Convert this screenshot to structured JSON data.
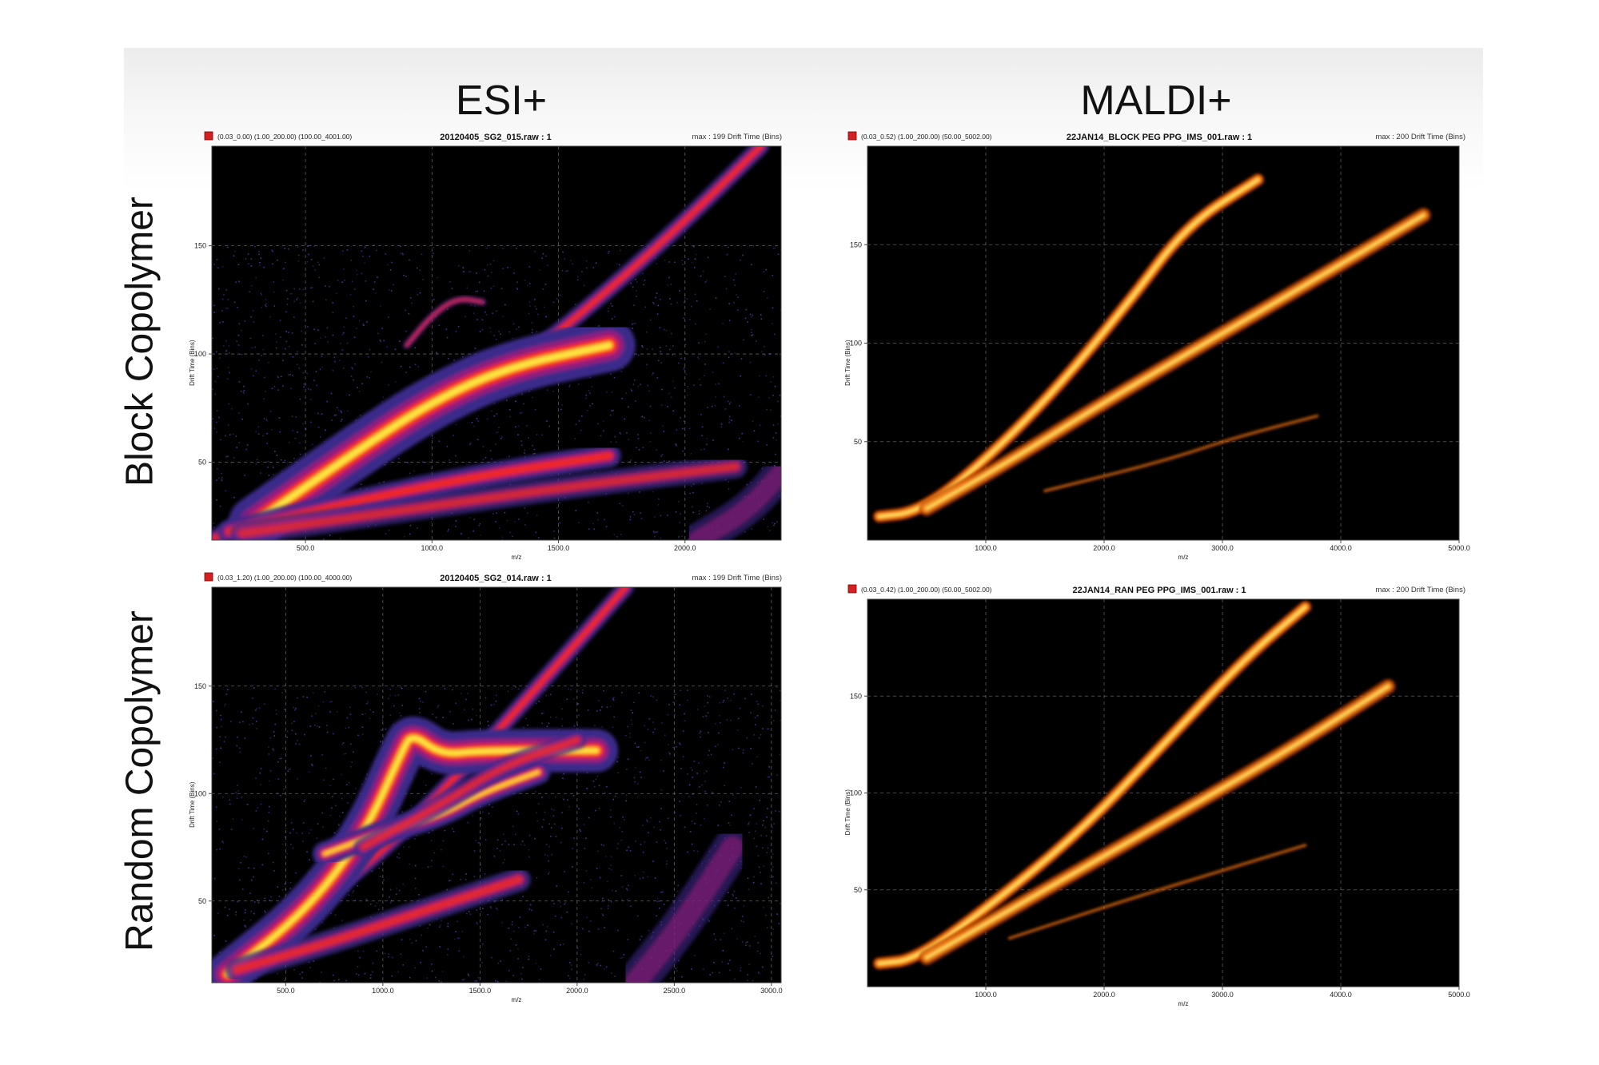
{
  "column_titles": [
    "ESI+",
    "MALDI+"
  ],
  "row_titles": [
    "Block Copolymer",
    "Random Copolymer"
  ],
  "chart_data": [
    {
      "type": "heatmap",
      "panel": "esi-block",
      "header": {
        "range": "(0.03_0.00) (1.00_200.00) (100.00_4001.00)",
        "title": "20120405_SG2_015.raw : 1",
        "max_label": "max : 199 Drift Time (Bins)"
      },
      "xlabel": "m/z",
      "ylabel": "Drift Time (Bins)",
      "xlim": [
        130,
        2380
      ],
      "ylim": [
        14,
        196
      ],
      "xticks": [
        500,
        1000,
        1500,
        2000
      ],
      "xtick_labels": [
        "500.0",
        "1000.0",
        "1500.0",
        "2000.0"
      ],
      "yticks": [
        50,
        100,
        150
      ],
      "ytick_labels": [
        "50",
        "100",
        "150"
      ],
      "grid": true,
      "colormap": "blue-red-yellow",
      "background": "#000000",
      "bands": [
        {
          "points": [
            [
              140,
              15
            ],
            [
              600,
              40
            ],
            [
              1000,
              70
            ],
            [
              1400,
              100
            ],
            [
              1900,
              150
            ],
            [
              2300,
              196
            ]
          ],
          "width": 7,
          "intensity": 0.7
        },
        {
          "points": [
            [
              300,
              22
            ],
            [
              700,
              55
            ],
            [
              1000,
              78
            ],
            [
              1300,
              94
            ],
            [
              1700,
              104
            ]
          ],
          "width": 22,
          "intensity": 1.0
        },
        {
          "points": [
            [
              200,
              18
            ],
            [
              700,
              32
            ],
            [
              1200,
              44
            ],
            [
              1700,
              53
            ]
          ],
          "width": 10,
          "intensity": 0.7
        },
        {
          "points": [
            [
              250,
              17
            ],
            [
              900,
              28
            ],
            [
              1500,
              38
            ],
            [
              2200,
              48
            ]
          ],
          "width": 10,
          "intensity": 0.5
        },
        {
          "points": [
            [
              900,
              104
            ],
            [
              1000,
              118
            ],
            [
              1100,
              126
            ],
            [
              1200,
              124
            ]
          ],
          "width": 3,
          "intensity": 0.6
        },
        {
          "points": [
            [
              2050,
              14
            ],
            [
              2250,
              28
            ],
            [
              2380,
              45
            ]
          ],
          "width": 14,
          "intensity": 0.4
        }
      ]
    },
    {
      "type": "heatmap",
      "panel": "maldi-block",
      "header": {
        "range": "(0.03_0.52) (1.00_200.00) (50.00_5002.00)",
        "title": "22JAN14_BLOCK PEG PPG_IMS_001.raw : 1",
        "max_label": "max : 200 Drift Time (Bins)"
      },
      "xlabel": "m/z",
      "ylabel": "Drift Time (Bins)",
      "xlim": [
        0,
        5000
      ],
      "ylim": [
        0,
        200
      ],
      "xticks": [
        1000,
        2000,
        3000,
        4000,
        5000
      ],
      "xtick_labels": [
        "1000.0",
        "2000.0",
        "3000.0",
        "4000.0",
        "5000.0"
      ],
      "yticks": [
        50,
        100,
        150
      ],
      "ytick_labels": [
        "50",
        "100",
        "150"
      ],
      "grid": true,
      "colormap": "red-orange-yellow",
      "background": "#000000",
      "bands": [
        {
          "points": [
            [
              100,
              12
            ],
            [
              400,
              14
            ],
            [
              800,
              30
            ],
            [
              1500,
              70
            ],
            [
              2200,
              120
            ],
            [
              2700,
              160
            ],
            [
              3300,
              183
            ]
          ],
          "width": 10,
          "intensity": 1.0
        },
        {
          "points": [
            [
              500,
              16
            ],
            [
              1200,
              40
            ],
            [
              2000,
              70
            ],
            [
              3000,
              105
            ],
            [
              4000,
              140
            ],
            [
              4700,
              165
            ]
          ],
          "width": 12,
          "intensity": 0.65
        },
        {
          "points": [
            [
              1500,
              25
            ],
            [
              2500,
              40
            ],
            [
              3100,
              52
            ],
            [
              3800,
              63
            ]
          ],
          "width": 3,
          "intensity": 0.35
        }
      ]
    },
    {
      "type": "heatmap",
      "panel": "esi-random",
      "header": {
        "range": "(0.03_1.20) (1.00_200.00) (100.00_4000.00)",
        "title": "20120405_SG2_014.raw : 1",
        "max_label": "max : 199 Drift Time (Bins)"
      },
      "xlabel": "m/z",
      "ylabel": "Drift Time (Bins)",
      "xlim": [
        120,
        3050
      ],
      "ylim": [
        12,
        196
      ],
      "xticks": [
        500,
        1000,
        1500,
        2000,
        2500,
        3000
      ],
      "xtick_labels": [
        "500.0",
        "1000.0",
        "1500.0",
        "2000.0",
        "2500.0",
        "3000.0"
      ],
      "yticks": [
        50,
        100,
        150
      ],
      "ytick_labels": [
        "50",
        "100",
        "150"
      ],
      "grid": true,
      "colormap": "blue-red-yellow",
      "background": "#000000",
      "bands": [
        {
          "points": [
            [
              130,
              15
            ],
            [
              500,
              40
            ],
            [
              900,
              65
            ],
            [
              1300,
              100
            ],
            [
              1800,
              150
            ],
            [
              2250,
              196
            ]
          ],
          "width": 7,
          "intensity": 0.7
        },
        {
          "points": [
            [
              200,
              16
            ],
            [
              600,
              45
            ],
            [
              900,
              80
            ],
            [
              1100,
              120
            ],
            [
              1150,
              128
            ],
            [
              1300,
              118
            ],
            [
              1500,
              120
            ],
            [
              2100,
              120
            ]
          ],
          "width": 18,
          "intensity": 1.0
        },
        {
          "points": [
            [
              700,
              72
            ],
            [
              1000,
              82
            ],
            [
              1300,
              90
            ],
            [
              1500,
              100
            ],
            [
              1800,
              110
            ]
          ],
          "width": 10,
          "intensity": 0.95
        },
        {
          "points": [
            [
              250,
              18
            ],
            [
              700,
              30
            ],
            [
              1200,
              45
            ],
            [
              1700,
              60
            ]
          ],
          "width": 10,
          "intensity": 0.6
        },
        {
          "points": [
            [
              900,
              75
            ],
            [
              1300,
              95
            ],
            [
              1600,
              112
            ],
            [
              2000,
              125
            ]
          ],
          "width": 8,
          "intensity": 0.55
        },
        {
          "points": [
            [
              2300,
              12
            ],
            [
              2550,
              40
            ],
            [
              2800,
              75
            ]
          ],
          "width": 16,
          "intensity": 0.4
        }
      ]
    },
    {
      "type": "heatmap",
      "panel": "maldi-random",
      "header": {
        "range": "(0.03_0.42) (1.00_200.00) (50.00_5002.00)",
        "title": "22JAN14_RAN PEG PPG_IMS_001.raw : 1",
        "max_label": "max : 200 Drift Time (Bins)"
      },
      "xlabel": "m/z",
      "ylabel": "Drift Time (Bins)",
      "xlim": [
        0,
        5000
      ],
      "ylim": [
        0,
        200
      ],
      "xticks": [
        1000,
        2000,
        3000,
        4000,
        5000
      ],
      "xtick_labels": [
        "1000.0",
        "2000.0",
        "3000.0",
        "4000.0",
        "5000.0"
      ],
      "yticks": [
        50,
        100,
        150
      ],
      "ytick_labels": [
        "50",
        "100",
        "150"
      ],
      "grid": true,
      "colormap": "red-orange-yellow",
      "background": "#000000",
      "bands": [
        {
          "points": [
            [
              100,
              12
            ],
            [
              400,
              14
            ],
            [
              1000,
              40
            ],
            [
              1800,
              80
            ],
            [
              2500,
              125
            ],
            [
              3200,
              170
            ],
            [
              3700,
              196
            ]
          ],
          "width": 10,
          "intensity": 1.0
        },
        {
          "points": [
            [
              500,
              15
            ],
            [
              1500,
              50
            ],
            [
              2500,
              85
            ],
            [
              3500,
              120
            ],
            [
              4400,
              155
            ]
          ],
          "width": 12,
          "intensity": 0.65
        },
        {
          "points": [
            [
              1200,
              25
            ],
            [
              2200,
              45
            ],
            [
              3000,
              60
            ],
            [
              3700,
              73
            ]
          ],
          "width": 3,
          "intensity": 0.35
        }
      ]
    }
  ]
}
